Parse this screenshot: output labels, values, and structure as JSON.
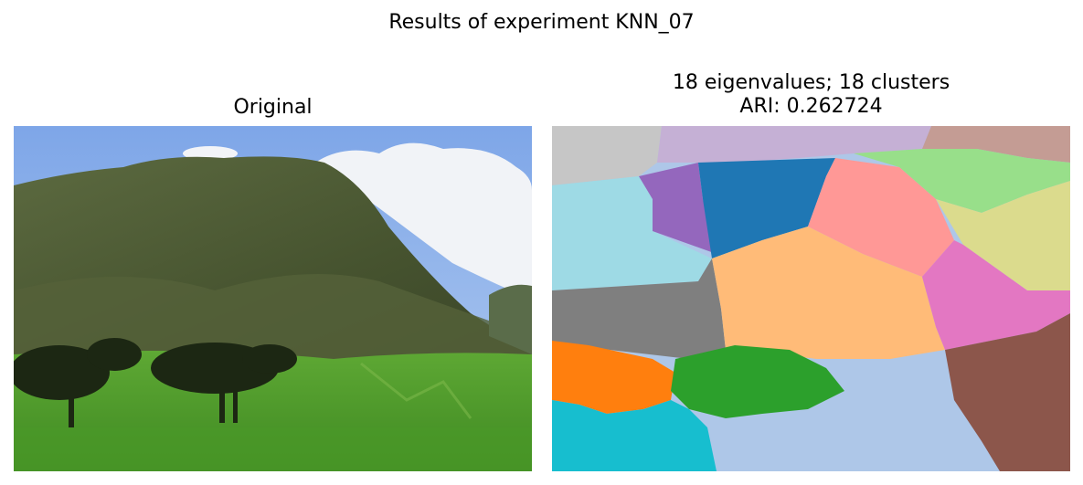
{
  "figure": {
    "suptitle": "Results of experiment KNN_07"
  },
  "panels": [
    {
      "title": "Original"
    },
    {
      "title_line1": "18 eigenvalues; 18 clusters",
      "title_line2": "ARI: 0.262724"
    }
  ],
  "colors": {
    "sky": "#8fb3ea",
    "cloud": "#f2f4f8",
    "mountain": "#4c5a38",
    "grass": "#4f9a2e",
    "tree": "#1f2a14",
    "cluster_palette": [
      "#c6c6c6",
      "#c5b0d5",
      "#c49c94",
      "#9edae5",
      "#9467bd",
      "#1f77b4",
      "#98df8a",
      "#ff9896",
      "#dbdb8d",
      "#7f7f7f",
      "#ffbb78",
      "#e377c2",
      "#ff7f0e",
      "#2ca02c",
      "#aec7e8",
      "#8c564b",
      "#17becf"
    ]
  }
}
